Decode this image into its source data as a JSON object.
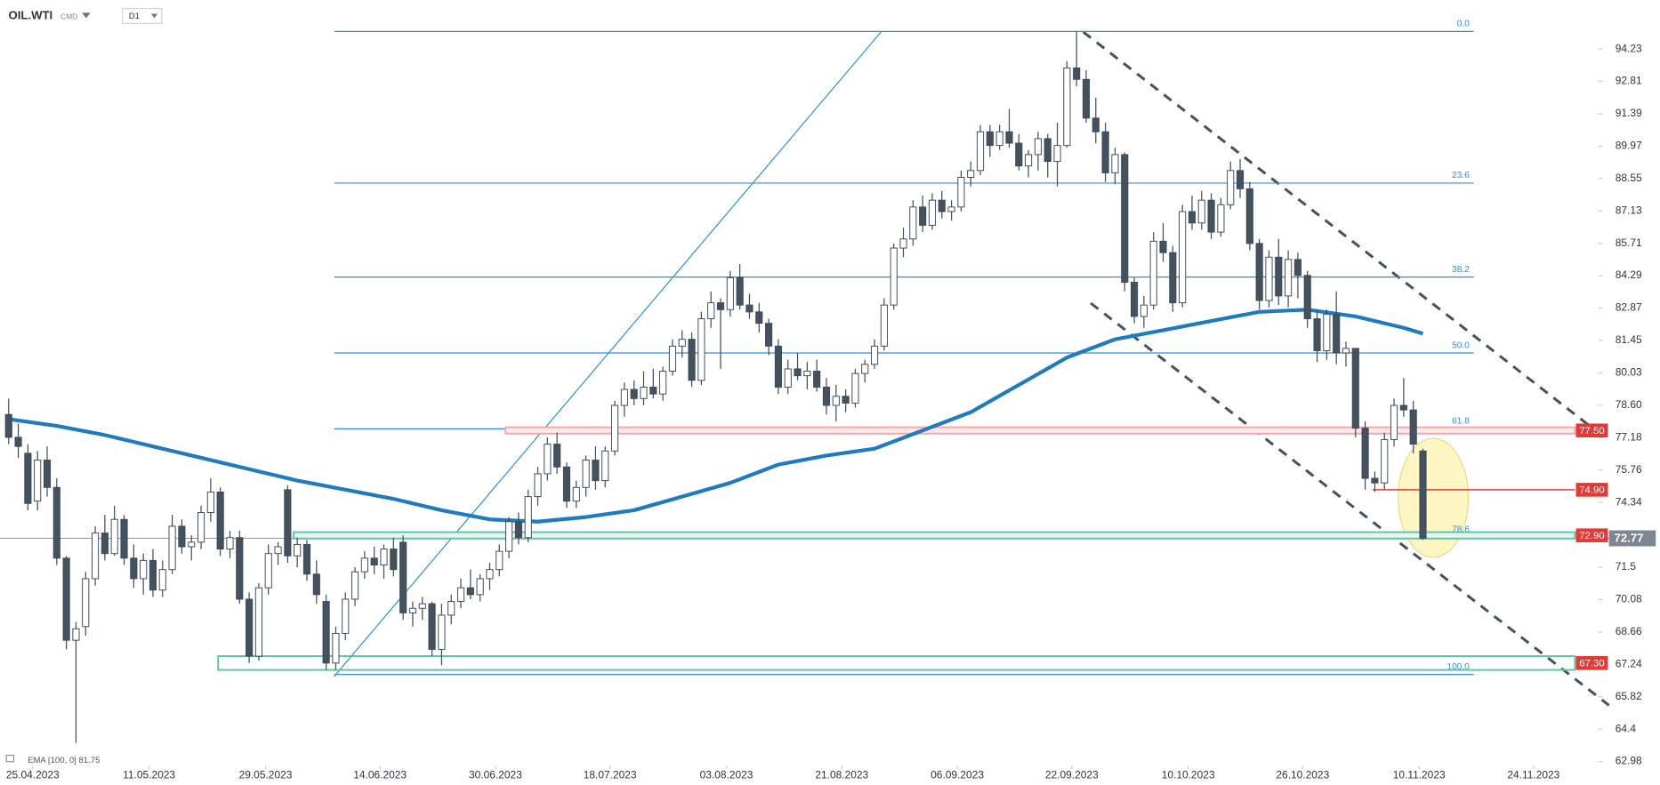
{
  "chart_data": {
    "type": "candlestick",
    "symbol": "OIL.WTI",
    "market": "CMD",
    "interval": "D1",
    "up_color": "#ffffff",
    "down_color": "#44525f",
    "ohlc": [
      [
        78.2,
        78.9,
        76.9,
        77.2
      ],
      [
        77.2,
        77.8,
        76.3,
        76.8
      ],
      [
        76.5,
        76.9,
        74.0,
        74.3
      ],
      [
        74.4,
        76.6,
        74.0,
        76.2
      ],
      [
        76.2,
        76.8,
        74.6,
        75.0
      ],
      [
        75.0,
        75.4,
        71.6,
        71.9
      ],
      [
        71.9,
        72.0,
        67.9,
        68.3
      ],
      [
        68.3,
        69.1,
        63.8,
        68.8
      ],
      [
        68.9,
        71.3,
        68.5,
        71.0
      ],
      [
        71.0,
        73.3,
        70.7,
        73.0
      ],
      [
        73.0,
        73.8,
        71.8,
        72.1
      ],
      [
        72.1,
        74.2,
        72.0,
        73.6
      ],
      [
        73.6,
        73.8,
        71.6,
        71.9
      ],
      [
        71.9,
        72.5,
        70.6,
        71.0
      ],
      [
        71.0,
        72.1,
        70.3,
        71.8
      ],
      [
        71.8,
        72.3,
        70.2,
        70.5
      ],
      [
        70.5,
        71.8,
        70.2,
        71.4
      ],
      [
        71.4,
        73.8,
        71.2,
        73.3
      ],
      [
        73.3,
        73.6,
        72.1,
        72.4
      ],
      [
        72.4,
        72.9,
        71.8,
        72.6
      ],
      [
        72.6,
        74.2,
        72.3,
        73.9
      ],
      [
        73.9,
        75.4,
        73.5,
        74.8
      ],
      [
        74.8,
        75.0,
        72.0,
        72.3
      ],
      [
        72.3,
        73.1,
        71.9,
        72.8
      ],
      [
        72.8,
        73.1,
        69.9,
        70.1
      ],
      [
        70.1,
        70.4,
        67.3,
        67.6
      ],
      [
        67.6,
        70.8,
        67.4,
        70.6
      ],
      [
        70.6,
        72.5,
        70.3,
        72.1
      ],
      [
        72.1,
        72.6,
        71.6,
        72.4
      ],
      [
        74.9,
        75.1,
        71.7,
        72.0
      ],
      [
        72.0,
        72.8,
        71.5,
        72.5
      ],
      [
        72.5,
        72.7,
        70.9,
        71.2
      ],
      [
        71.2,
        71.8,
        69.9,
        70.3
      ],
      [
        70.0,
        70.3,
        67.0,
        67.3
      ],
      [
        67.3,
        68.9,
        67.0,
        68.6
      ],
      [
        68.6,
        70.4,
        68.3,
        70.1
      ],
      [
        70.1,
        71.5,
        69.8,
        71.3
      ],
      [
        71.3,
        72.2,
        71.0,
        71.9
      ],
      [
        71.9,
        72.4,
        71.2,
        71.6
      ],
      [
        71.6,
        72.5,
        71.0,
        72.3
      ],
      [
        72.3,
        72.8,
        71.1,
        71.4
      ],
      [
        72.6,
        72.9,
        69.2,
        69.5
      ],
      [
        69.5,
        70.0,
        68.9,
        69.7
      ],
      [
        69.7,
        70.2,
        69.2,
        69.9
      ],
      [
        69.9,
        70.0,
        67.6,
        67.9
      ],
      [
        67.9,
        69.9,
        67.2,
        69.4
      ],
      [
        69.4,
        70.3,
        69.0,
        70.0
      ],
      [
        70.0,
        71.0,
        69.7,
        70.6
      ],
      [
        70.6,
        71.4,
        70.1,
        70.3
      ],
      [
        70.3,
        71.2,
        70.0,
        71.0
      ],
      [
        71.0,
        71.7,
        70.5,
        71.4
      ],
      [
        71.4,
        72.5,
        71.1,
        72.2
      ],
      [
        72.2,
        73.7,
        71.9,
        73.5
      ],
      [
        73.5,
        73.9,
        72.5,
        72.8
      ],
      [
        72.8,
        74.9,
        72.6,
        74.6
      ],
      [
        74.6,
        75.9,
        74.2,
        75.6
      ],
      [
        75.6,
        77.2,
        75.3,
        76.9
      ],
      [
        76.9,
        77.4,
        75.6,
        75.9
      ],
      [
        75.9,
        76.1,
        74.1,
        74.4
      ],
      [
        74.4,
        75.3,
        74.1,
        75.0
      ],
      [
        75.0,
        76.4,
        74.6,
        76.2
      ],
      [
        76.2,
        76.8,
        74.9,
        75.3
      ],
      [
        75.3,
        76.8,
        75.0,
        76.6
      ],
      [
        76.6,
        78.8,
        76.4,
        78.6
      ],
      [
        78.6,
        79.6,
        78.1,
        79.3
      ],
      [
        79.3,
        79.7,
        78.6,
        78.9
      ],
      [
        78.9,
        80.1,
        78.6,
        79.4
      ],
      [
        79.4,
        80.2,
        78.9,
        79.1
      ],
      [
        79.1,
        80.3,
        78.8,
        80.1
      ],
      [
        80.1,
        81.5,
        79.9,
        81.2
      ],
      [
        81.2,
        81.9,
        80.7,
        81.5
      ],
      [
        81.5,
        81.8,
        79.4,
        79.7
      ],
      [
        79.7,
        82.7,
        79.5,
        82.4
      ],
      [
        82.4,
        83.6,
        82.0,
        83.1
      ],
      [
        83.1,
        83.3,
        80.2,
        82.8
      ],
      [
        82.8,
        84.5,
        82.5,
        84.2
      ],
      [
        84.2,
        84.8,
        82.8,
        83.0
      ],
      [
        83.0,
        83.5,
        82.4,
        82.7
      ],
      [
        82.7,
        83.1,
        81.8,
        82.2
      ],
      [
        82.2,
        82.4,
        80.8,
        81.2
      ],
      [
        81.2,
        81.5,
        79.1,
        79.4
      ],
      [
        79.4,
        80.6,
        79.1,
        80.2
      ],
      [
        80.2,
        80.9,
        79.7,
        79.9
      ],
      [
        79.9,
        80.5,
        79.3,
        80.1
      ],
      [
        80.1,
        80.6,
        79.2,
        79.4
      ],
      [
        79.4,
        79.8,
        78.2,
        78.6
      ],
      [
        78.6,
        79.5,
        77.9,
        79.0
      ],
      [
        79.0,
        79.3,
        78.3,
        78.7
      ],
      [
        78.7,
        80.2,
        78.5,
        80.0
      ],
      [
        80.0,
        80.6,
        79.6,
        80.4
      ],
      [
        80.4,
        81.5,
        80.2,
        81.2
      ],
      [
        81.2,
        83.3,
        81.0,
        83.0
      ],
      [
        83.0,
        85.7,
        82.8,
        85.5
      ],
      [
        85.5,
        86.4,
        85.1,
        85.9
      ],
      [
        85.9,
        87.6,
        85.6,
        87.3
      ],
      [
        87.3,
        87.8,
        86.2,
        86.5
      ],
      [
        86.5,
        87.9,
        86.3,
        87.6
      ],
      [
        87.6,
        88.0,
        86.8,
        87.1
      ],
      [
        87.1,
        87.6,
        86.7,
        87.3
      ],
      [
        87.3,
        88.9,
        87.1,
        88.6
      ],
      [
        88.6,
        89.3,
        88.2,
        88.9
      ],
      [
        88.9,
        90.9,
        88.7,
        90.6
      ],
      [
        90.6,
        90.9,
        89.5,
        90.0
      ],
      [
        90.0,
        90.9,
        89.8,
        90.6
      ],
      [
        90.6,
        91.6,
        89.9,
        90.1
      ],
      [
        90.1,
        90.5,
        88.9,
        89.1
      ],
      [
        89.1,
        89.8,
        88.6,
        89.6
      ],
      [
        89.6,
        90.6,
        88.9,
        90.3
      ],
      [
        90.3,
        90.5,
        88.6,
        89.3
      ],
      [
        89.3,
        91.0,
        88.2,
        90.0
      ],
      [
        90.0,
        93.7,
        89.9,
        93.4
      ],
      [
        93.4,
        95.0,
        92.6,
        92.9
      ],
      [
        92.9,
        93.3,
        91.0,
        91.2
      ],
      [
        91.2,
        92.1,
        90.1,
        90.6
      ],
      [
        90.6,
        91.0,
        88.4,
        88.8
      ],
      [
        88.8,
        89.9,
        88.3,
        89.6
      ],
      [
        89.6,
        89.7,
        83.6,
        84.0
      ],
      [
        84.0,
        84.2,
        82.2,
        82.5
      ],
      [
        82.5,
        83.4,
        82.0,
        83.0
      ],
      [
        83.0,
        86.2,
        82.8,
        85.8
      ],
      [
        85.8,
        86.6,
        84.9,
        85.3
      ],
      [
        85.3,
        85.6,
        82.7,
        83.1
      ],
      [
        83.1,
        87.4,
        82.9,
        87.1
      ],
      [
        87.1,
        87.8,
        86.3,
        86.6
      ],
      [
        86.6,
        88.0,
        86.3,
        87.6
      ],
      [
        87.6,
        87.9,
        85.9,
        86.2
      ],
      [
        86.2,
        87.7,
        86.0,
        87.4
      ],
      [
        87.4,
        89.3,
        87.2,
        88.9
      ],
      [
        88.9,
        89.4,
        87.7,
        88.1
      ],
      [
        88.1,
        88.4,
        85.4,
        85.7
      ],
      [
        85.7,
        85.9,
        82.8,
        83.2
      ],
      [
        83.2,
        85.4,
        82.9,
        85.1
      ],
      [
        85.1,
        85.9,
        83.0,
        83.4
      ],
      [
        83.4,
        85.4,
        82.9,
        85.0
      ],
      [
        85.0,
        85.3,
        83.3,
        84.3
      ],
      [
        84.3,
        84.5,
        82.0,
        82.4
      ],
      [
        82.4,
        82.8,
        80.5,
        81.0
      ],
      [
        81.0,
        82.8,
        80.6,
        82.6
      ],
      [
        82.6,
        83.6,
        80.4,
        80.9
      ],
      [
        80.9,
        81.4,
        80.3,
        81.1
      ],
      [
        81.1,
        81.1,
        77.2,
        77.6
      ],
      [
        77.6,
        77.9,
        74.9,
        75.4
      ],
      [
        75.4,
        75.7,
        74.8,
        75.2
      ],
      [
        75.2,
        77.4,
        74.9,
        77.1
      ],
      [
        77.1,
        78.9,
        76.8,
        78.6
      ],
      [
        78.6,
        79.8,
        78.1,
        78.4
      ],
      [
        78.4,
        78.8,
        76.5,
        76.9
      ],
      [
        76.6,
        76.7,
        72.7,
        72.77
      ]
    ],
    "ema": {
      "name": "EMA [100, 0] 81.75",
      "color": "#1f7bbf",
      "x": [
        0,
        5,
        10,
        15,
        20,
        25,
        30,
        35,
        40,
        45,
        50,
        55,
        60,
        65,
        70,
        75,
        80,
        85,
        90,
        95,
        100,
        105,
        110,
        115,
        120,
        125,
        130,
        135,
        140,
        145,
        147
      ],
      "values": [
        78.0,
        77.7,
        77.3,
        76.8,
        76.3,
        75.8,
        75.3,
        74.9,
        74.5,
        74.0,
        73.6,
        73.5,
        73.7,
        74.0,
        74.6,
        75.2,
        76.0,
        76.4,
        76.7,
        77.5,
        78.3,
        79.5,
        80.7,
        81.5,
        81.9,
        82.3,
        82.7,
        82.8,
        82.5,
        82.0,
        81.75
      ]
    },
    "fib": {
      "color": "#2f8fd8",
      "levels": [
        {
          "ratio": "0.0",
          "price": 95.0
        },
        {
          "ratio": "23.6",
          "price": 88.35
        },
        {
          "ratio": "38.2",
          "price": 84.23
        },
        {
          "ratio": "50.0",
          "price": 80.9
        },
        {
          "ratio": "61.8",
          "price": 77.57
        },
        {
          "ratio": "78.6",
          "price": 72.83
        },
        {
          "ratio": "100.0",
          "price": 66.8
        }
      ]
    },
    "levels": [
      {
        "value": 77.5,
        "label": "77.50",
        "color": "#e53935"
      },
      {
        "value": 74.9,
        "label": "74.90",
        "color": "#e53935"
      },
      {
        "value": 72.9,
        "label": "72.90",
        "color": "#e53935"
      },
      {
        "value": 67.3,
        "label": "67.30",
        "color": "#e53935"
      }
    ],
    "last_price": 72.77,
    "last_color": "#7d8791",
    "xlim": [
      -0.9,
      163.9
    ],
    "ylim": [
      62.79,
      96.38
    ],
    "yticks": [
      94.23,
      92.81,
      91.39,
      89.97,
      88.55,
      87.13,
      85.71,
      84.29,
      82.87,
      81.45,
      80.03,
      {
        "value": 78.6,
        "label": "78.60"
      },
      77.18,
      75.76,
      74.34,
      71.5,
      70.08,
      68.66,
      67.24,
      65.82,
      64.4,
      62.98
    ],
    "xticks": [
      {
        "value": 2.5,
        "label": "25.04.2023"
      },
      {
        "value": 14.6,
        "label": "11.05.2023"
      },
      {
        "value": 26.7,
        "label": "29.05.2023"
      },
      {
        "value": 38.6,
        "label": "14.06.2023"
      },
      {
        "value": 50.6,
        "label": "30.06.2023"
      },
      {
        "value": 62.5,
        "label": "18.07.2023"
      },
      {
        "value": 74.6,
        "label": "03.08.2023"
      },
      {
        "value": 86.6,
        "label": "21.08.2023"
      },
      {
        "value": 98.6,
        "label": "06.09.2023"
      },
      {
        "value": 110.5,
        "label": "22.09.2023"
      },
      {
        "value": 122.6,
        "label": "10.10.2023"
      },
      {
        "value": 134.5,
        "label": "26.10.2023"
      },
      {
        "value": 146.6,
        "label": "10.11.2023"
      },
      {
        "value": 158.5,
        "label": "24.11.2023"
      }
    ]
  }
}
